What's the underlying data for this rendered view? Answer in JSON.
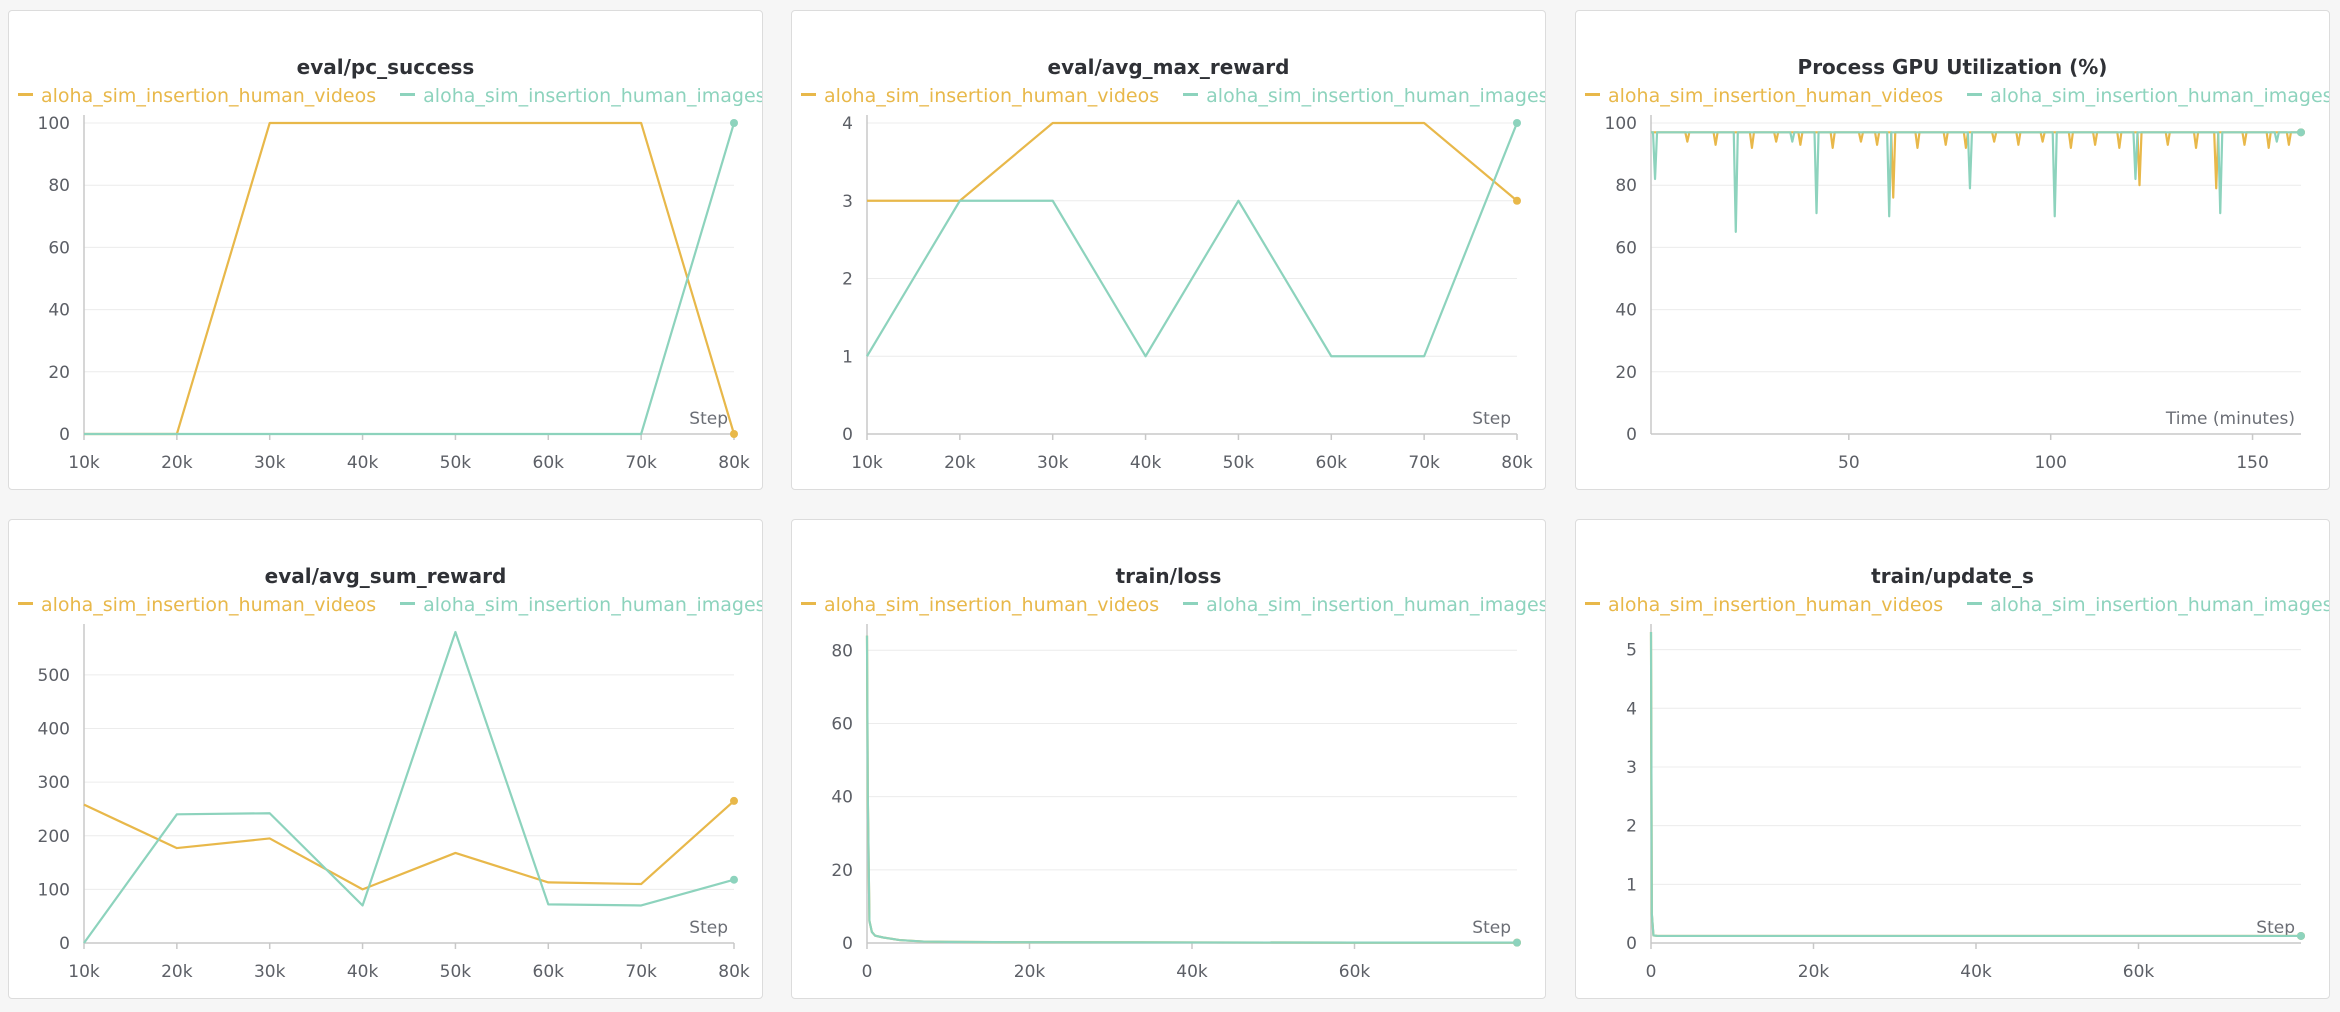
{
  "colors": {
    "videos": "#e8b84a",
    "images": "#8dd3bd"
  },
  "chart_data": [
    {
      "id": "pc_success",
      "type": "line",
      "title": "eval/pc_success",
      "xlabel": "Step",
      "x_ticks": [
        10000,
        20000,
        30000,
        40000,
        50000,
        60000,
        70000,
        80000
      ],
      "x_tick_labels": [
        "10k",
        "20k",
        "30k",
        "40k",
        "50k",
        "60k",
        "70k",
        "80k"
      ],
      "xlim": [
        10000,
        80000
      ],
      "y_ticks": [
        0,
        20,
        40,
        60,
        80,
        100
      ],
      "ylim": [
        0,
        100
      ],
      "series": [
        {
          "name": "aloha_sim_insertion_human_videos",
          "color": "#e8b84a",
          "x": [
            10000,
            20000,
            30000,
            40000,
            50000,
            60000,
            70000,
            80000
          ],
          "y": [
            0,
            0,
            100,
            100,
            100,
            100,
            100,
            0
          ]
        },
        {
          "name": "aloha_sim_insertion_human_images",
          "color": "#8dd3bd",
          "x": [
            10000,
            20000,
            30000,
            40000,
            50000,
            60000,
            70000,
            80000
          ],
          "y": [
            0,
            0,
            0,
            0,
            0,
            0,
            0,
            100
          ]
        }
      ]
    },
    {
      "id": "avg_max_reward",
      "type": "line",
      "title": "eval/avg_max_reward",
      "xlabel": "Step",
      "x_ticks": [
        10000,
        20000,
        30000,
        40000,
        50000,
        60000,
        70000,
        80000
      ],
      "x_tick_labels": [
        "10k",
        "20k",
        "30k",
        "40k",
        "50k",
        "60k",
        "70k",
        "80k"
      ],
      "xlim": [
        10000,
        80000
      ],
      "y_ticks": [
        0,
        1,
        2,
        3,
        4
      ],
      "ylim": [
        0,
        4
      ],
      "series": [
        {
          "name": "aloha_sim_insertion_human_videos",
          "color": "#e8b84a",
          "x": [
            10000,
            20000,
            30000,
            40000,
            50000,
            60000,
            70000,
            80000
          ],
          "y": [
            3,
            3,
            4,
            4,
            4,
            4,
            4,
            3
          ]
        },
        {
          "name": "aloha_sim_insertion_human_images",
          "color": "#8dd3bd",
          "x": [
            10000,
            20000,
            30000,
            40000,
            50000,
            60000,
            70000,
            80000
          ],
          "y": [
            1,
            3,
            3,
            1,
            3,
            1,
            1,
            4
          ]
        }
      ]
    },
    {
      "id": "gpu_util",
      "type": "line",
      "title": "Process GPU Utilization (%)",
      "xlabel": "Time (minutes)",
      "x_ticks": [
        50,
        100,
        150
      ],
      "x_tick_labels": [
        "50",
        "100",
        "150"
      ],
      "xlim": [
        1,
        162
      ],
      "y_ticks": [
        0,
        20,
        40,
        60,
        80,
        100
      ],
      "ylim": [
        0,
        100
      ],
      "base_value": 97,
      "series": [
        {
          "name": "aloha_sim_insertion_human_videos",
          "color": "#e8b84a",
          "dips": [
            [
              10,
              94
            ],
            [
              17,
              93
            ],
            [
              26,
              92
            ],
            [
              32,
              94
            ],
            [
              38,
              93
            ],
            [
              46,
              92
            ],
            [
              53,
              94
            ],
            [
              57,
              93
            ],
            [
              61,
              76
            ],
            [
              67,
              92
            ],
            [
              74,
              93
            ],
            [
              79,
              92
            ],
            [
              86,
              94
            ],
            [
              92,
              93
            ],
            [
              98,
              94
            ],
            [
              105,
              92
            ],
            [
              111,
              93
            ],
            [
              117,
              92
            ],
            [
              122,
              80
            ],
            [
              129,
              93
            ],
            [
              136,
              92
            ],
            [
              141,
              79
            ],
            [
              148,
              93
            ],
            [
              154,
              92
            ],
            [
              159,
              93
            ]
          ]
        },
        {
          "name": "aloha_sim_insertion_human_images",
          "color": "#8dd3bd",
          "dips": [
            [
              2,
              82
            ],
            [
              22,
              65
            ],
            [
              36,
              94
            ],
            [
              42,
              71
            ],
            [
              60,
              70
            ],
            [
              80,
              79
            ],
            [
              101,
              70
            ],
            [
              121,
              82
            ],
            [
              142,
              71
            ],
            [
              156,
              94
            ]
          ]
        }
      ]
    },
    {
      "id": "avg_sum_reward",
      "type": "line",
      "title": "eval/avg_sum_reward",
      "xlabel": "Step",
      "x_ticks": [
        10000,
        20000,
        30000,
        40000,
        50000,
        60000,
        70000,
        80000
      ],
      "x_tick_labels": [
        "10k",
        "20k",
        "30k",
        "40k",
        "50k",
        "60k",
        "70k",
        "80k"
      ],
      "xlim": [
        10000,
        80000
      ],
      "y_ticks": [
        0,
        100,
        200,
        300,
        400,
        500
      ],
      "ylim": [
        0,
        580
      ],
      "series": [
        {
          "name": "aloha_sim_insertion_human_videos",
          "color": "#e8b84a",
          "x": [
            10000,
            20000,
            30000,
            40000,
            50000,
            60000,
            70000,
            80000
          ],
          "y": [
            258,
            177,
            195,
            100,
            168,
            113,
            110,
            265
          ]
        },
        {
          "name": "aloha_sim_insertion_human_images",
          "color": "#8dd3bd",
          "x": [
            10000,
            20000,
            30000,
            40000,
            50000,
            60000,
            70000,
            80000
          ],
          "y": [
            0,
            240,
            242,
            70,
            580,
            72,
            70,
            118
          ]
        }
      ]
    },
    {
      "id": "train_loss",
      "type": "line",
      "title": "train/loss",
      "xlabel": "Step",
      "x_ticks": [
        0,
        20000,
        40000,
        60000
      ],
      "x_tick_labels": [
        "0",
        "20k",
        "40k",
        "60k"
      ],
      "xlim": [
        0,
        80000
      ],
      "y_ticks": [
        0,
        20,
        40,
        60,
        80
      ],
      "ylim": [
        0,
        85
      ],
      "series": [
        {
          "name": "aloha_sim_insertion_human_videos",
          "color": "#e8b84a",
          "x": [
            0,
            100,
            300,
            600,
            1000,
            2000,
            4000,
            7000,
            10000,
            20000,
            40000,
            60000,
            80000
          ],
          "y": [
            84,
            40,
            6,
            3,
            2,
            1.5,
            0.8,
            0.4,
            0.3,
            0.2,
            0.15,
            0.1,
            0.1
          ]
        },
        {
          "name": "aloha_sim_insertion_human_images",
          "color": "#8dd3bd",
          "x": [
            0,
            100,
            300,
            600,
            1000,
            2000,
            4000,
            7000,
            10000,
            20000,
            40000,
            60000,
            80000
          ],
          "y": [
            84,
            40,
            6,
            3,
            2,
            1.5,
            0.8,
            0.4,
            0.3,
            0.2,
            0.15,
            0.1,
            0.1
          ]
        }
      ]
    },
    {
      "id": "update_s",
      "type": "line",
      "title": "train/update_s",
      "xlabel": "Step",
      "x_ticks": [
        0,
        20000,
        40000,
        60000
      ],
      "x_tick_labels": [
        "0",
        "20k",
        "40k",
        "60k"
      ],
      "xlim": [
        0,
        80000
      ],
      "y_ticks": [
        0,
        1,
        2,
        3,
        4,
        5
      ],
      "ylim": [
        0,
        5.3
      ],
      "series": [
        {
          "name": "aloha_sim_insertion_human_videos",
          "color": "#e8b84a",
          "x": [
            0,
            100,
            300,
            800,
            80000
          ],
          "y": [
            5.3,
            0.5,
            0.13,
            0.12,
            0.12
          ]
        },
        {
          "name": "aloha_sim_insertion_human_images",
          "color": "#8dd3bd",
          "x": [
            0,
            100,
            300,
            800,
            80000
          ],
          "y": [
            5.3,
            0.5,
            0.13,
            0.12,
            0.12
          ]
        }
      ]
    }
  ]
}
